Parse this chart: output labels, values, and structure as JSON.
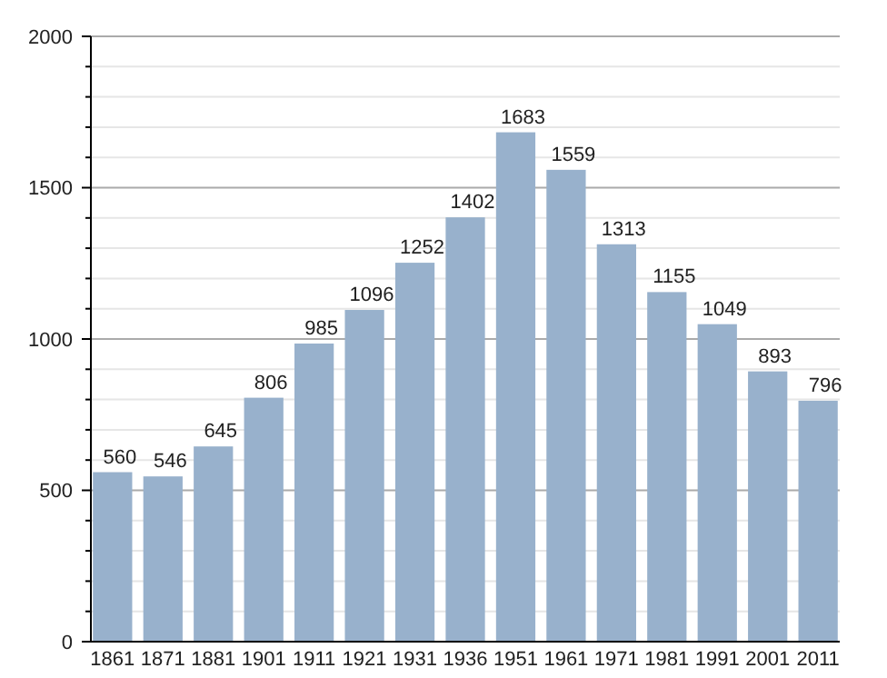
{
  "chart_data": {
    "type": "bar",
    "categories": [
      "1861",
      "1871",
      "1881",
      "1901",
      "1911",
      "1921",
      "1931",
      "1936",
      "1951",
      "1961",
      "1971",
      "1981",
      "1991",
      "2001",
      "2011"
    ],
    "values": [
      560,
      546,
      645,
      806,
      985,
      1096,
      1252,
      1402,
      1683,
      1559,
      1313,
      1155,
      1049,
      893,
      796
    ],
    "color": "#98b1cc",
    "data_labels": true,
    "grid": "y",
    "ylim": [
      0,
      2000
    ],
    "yticks": [
      0,
      {
        "value": 100,
        "label": null
      },
      {
        "value": 200,
        "label": null
      },
      {
        "value": 300,
        "label": null
      },
      {
        "value": 400,
        "label": null
      },
      500,
      {
        "value": 600,
        "label": null
      },
      {
        "value": 700,
        "label": null
      },
      {
        "value": 800,
        "label": null
      },
      {
        "value": 900,
        "label": null
      },
      1000,
      {
        "value": 1100,
        "label": null
      },
      {
        "value": 1200,
        "label": null
      },
      {
        "value": 1300,
        "label": null
      },
      {
        "value": 1400,
        "label": null
      },
      1500,
      {
        "value": 1600,
        "label": null
      },
      {
        "value": 1700,
        "label": null
      },
      {
        "value": 1800,
        "label": null
      },
      {
        "value": 1900,
        "label": null
      },
      2000
    ]
  }
}
